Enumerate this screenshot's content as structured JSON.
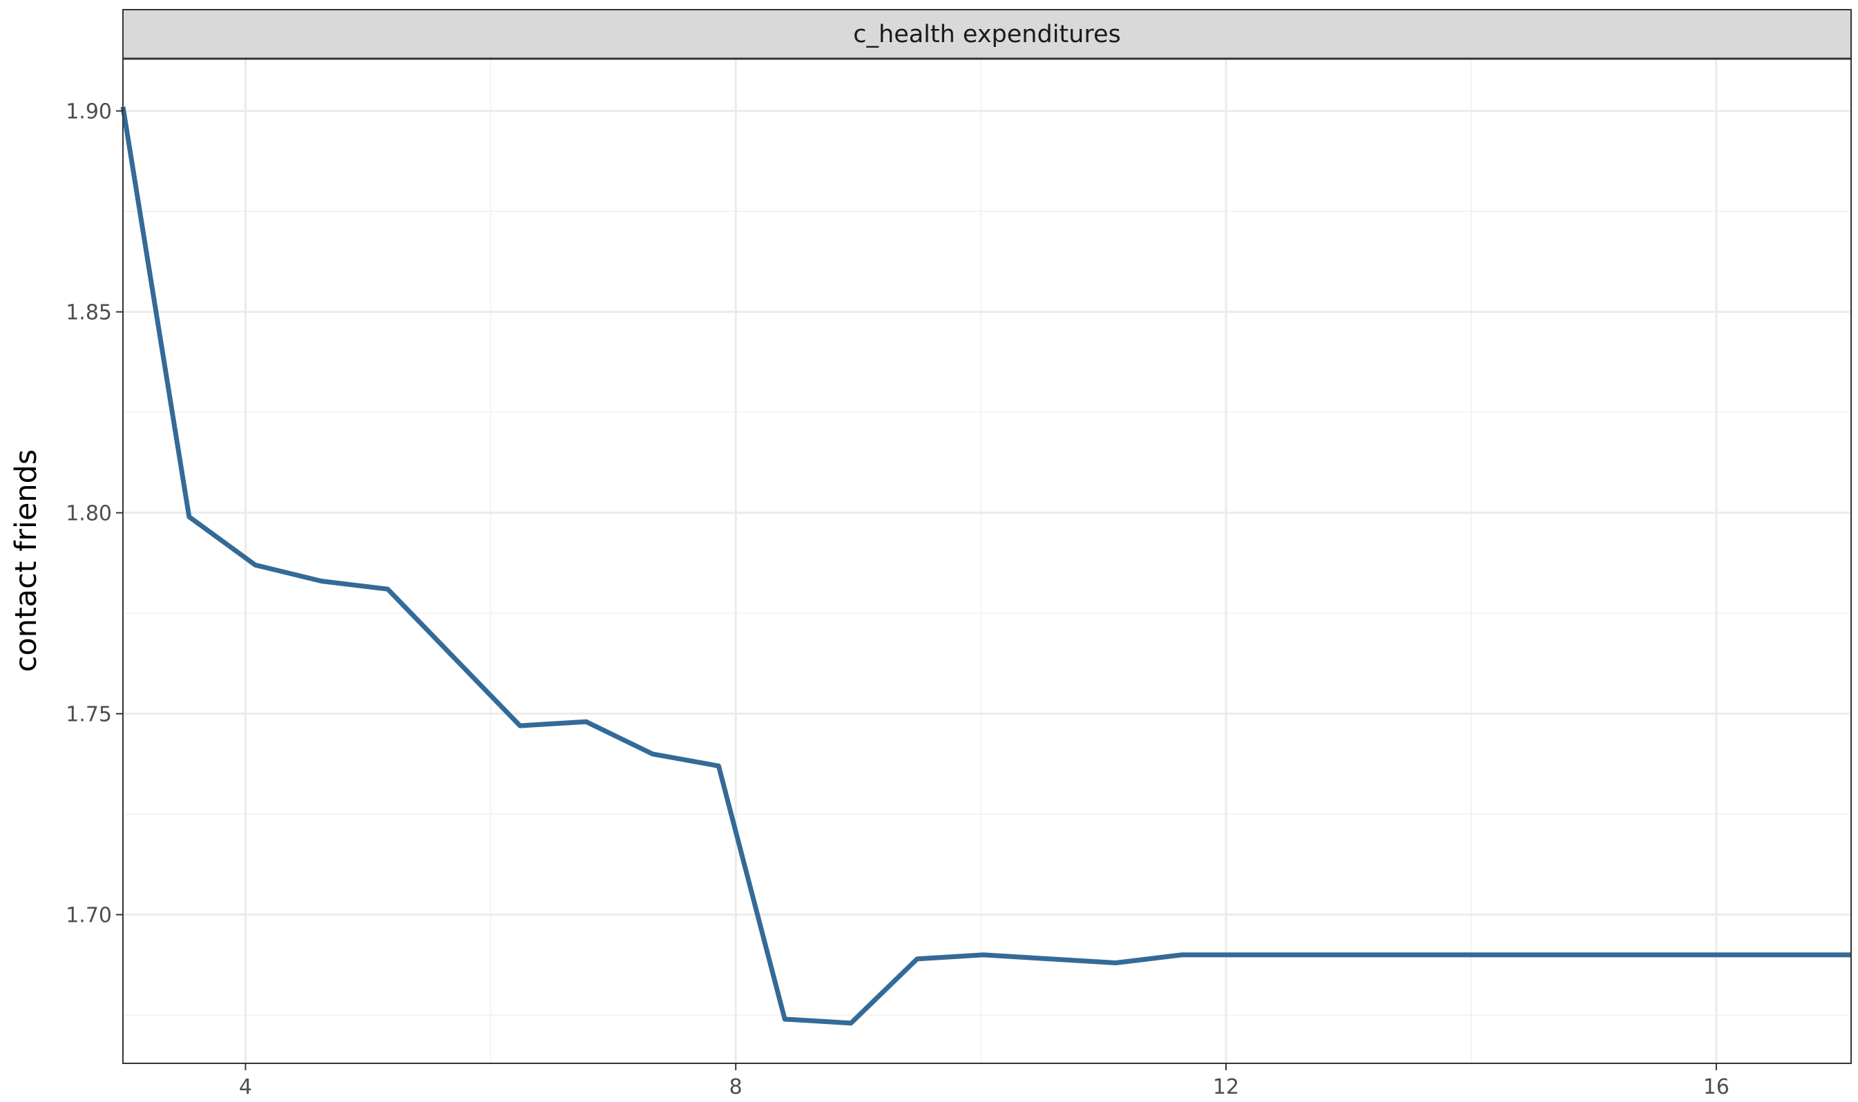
{
  "chart_data": {
    "type": "line",
    "facet_label": "c_health expenditures",
    "ylabel": "contact friends",
    "xlabel": "",
    "xlim": [
      3.0,
      17.1
    ],
    "ylim": [
      1.663,
      1.913
    ],
    "x_ticks": [
      4,
      8,
      12,
      16
    ],
    "x_tick_labels": [
      "4",
      "8",
      "12",
      "16"
    ],
    "y_ticks": [
      1.7,
      1.75,
      1.8,
      1.85,
      1.9
    ],
    "y_tick_labels": [
      "1.70",
      "1.75",
      "1.80",
      "1.85",
      "1.90"
    ],
    "grid": true,
    "line_color": "#336a98",
    "series": [
      {
        "x": [
          3.0,
          3.54,
          4.08,
          4.62,
          5.16,
          5.7,
          6.24,
          6.78,
          7.32,
          7.86,
          8.4,
          8.94,
          9.48,
          10.02,
          10.56,
          11.1,
          11.64,
          12.18,
          12.72,
          13.26,
          13.8,
          14.34,
          14.88,
          15.42,
          15.96,
          16.5,
          17.1
        ],
        "y": [
          1.901,
          1.799,
          1.787,
          1.783,
          1.781,
          1.764,
          1.747,
          1.748,
          1.74,
          1.737,
          1.674,
          1.673,
          1.689,
          1.69,
          1.689,
          1.688,
          1.69,
          1.69,
          1.69,
          1.69,
          1.69,
          1.69,
          1.69,
          1.69,
          1.69,
          1.69,
          1.69
        ]
      }
    ]
  }
}
